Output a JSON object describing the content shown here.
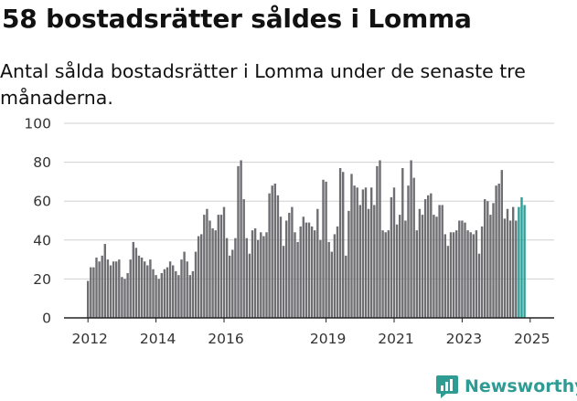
{
  "title": "58 bostadsrätter såldes i Lomma",
  "subtitle": "Antal sålda bostadsrätter i Lomma under de senaste tre månaderna.",
  "brand": "Newsworthy",
  "colors": {
    "bar": "#6f6e73",
    "highlight": "#2aa198",
    "brand": "#2e9c93",
    "grid": "#d0d0d0",
    "axis": "#222222"
  },
  "chart_data": {
    "type": "bar",
    "title": "58 bostadsrätter såldes i Lomma",
    "subtitle": "Antal sålda bostadsrätter i Lomma under de senaste tre månaderna.",
    "xlabel": "",
    "ylabel": "",
    "ylim": [
      0,
      100
    ],
    "yticks": [
      0,
      20,
      40,
      60,
      80,
      100
    ],
    "xticks": [
      "2012",
      "2014",
      "2016",
      "2019",
      "2021",
      "2023",
      "2025"
    ],
    "xtick_months": [
      "2012-01",
      "2014-01",
      "2016-01",
      "2019-01",
      "2021-01",
      "2023-01",
      "2025-01"
    ],
    "grid": true,
    "start_month": "2012-01",
    "values": [
      19,
      26,
      26,
      31,
      29,
      32,
      38,
      30,
      27,
      29,
      29,
      30,
      21,
      20,
      23,
      30,
      39,
      36,
      32,
      31,
      29,
      27,
      30,
      25,
      22,
      20,
      23,
      25,
      26,
      29,
      27,
      24,
      22,
      30,
      34,
      29,
      22,
      24,
      34,
      42,
      43,
      53,
      56,
      50,
      46,
      45,
      53,
      53,
      57,
      41,
      32,
      35,
      41,
      78,
      81,
      61,
      41,
      33,
      45,
      46,
      40,
      44,
      42,
      44,
      64,
      68,
      69,
      63,
      52,
      37,
      50,
      54,
      57,
      44,
      39,
      47,
      52,
      49,
      49,
      47,
      45,
      56,
      40,
      71,
      70,
      39,
      34,
      43,
      47,
      77,
      75,
      32,
      55,
      74,
      68,
      67,
      58,
      66,
      67,
      56,
      67,
      58,
      78,
      81,
      45,
      44,
      45,
      62,
      67,
      48,
      53,
      77,
      50,
      68,
      81,
      72,
      45,
      56,
      53,
      61,
      63,
      64,
      53,
      52,
      58,
      58,
      43,
      37,
      44,
      44,
      45,
      50,
      50,
      49,
      45,
      44,
      43,
      45,
      33,
      47,
      61,
      60,
      53,
      59,
      68,
      69,
      76,
      51,
      56,
      50,
      57,
      50,
      57,
      62,
      58
    ],
    "highlight_last": 3,
    "data_labels": [
      {
        "month": "2025-03",
        "text": "58"
      }
    ]
  }
}
